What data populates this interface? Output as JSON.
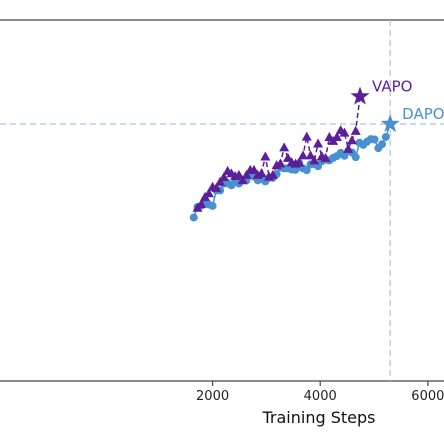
{
  "chart_data": {
    "type": "line",
    "title": "",
    "xlabel": "Training Steps",
    "ylabel": "",
    "xlim": [
      -1950,
      6300
    ],
    "ylim": [
      0,
      1
    ],
    "xticks": [
      2000,
      4000,
      6000
    ],
    "xtick_labels": [
      "2000",
      "4000",
      "6000"
    ],
    "grid": false,
    "reference_lines": {
      "x": 5300,
      "y": 0.712,
      "color": "#a9c4e8",
      "style": "dashed"
    },
    "series": [
      {
        "name": "VAPO",
        "color": "#5b1f99",
        "marker": "triangle",
        "line_style": "dashed",
        "label_position": "end",
        "end_marker": "star",
        "x": [
          1720,
          1790,
          1860,
          1930,
          2000,
          2070,
          2140,
          2210,
          2280,
          2350,
          2420,
          2490,
          2560,
          2630,
          2700,
          2770,
          2840,
          2910,
          2980,
          3050,
          3120,
          3190,
          3260,
          3330,
          3400,
          3470,
          3540,
          3610,
          3680,
          3750,
          3820,
          3890,
          3960,
          4030,
          4100,
          4170,
          4240,
          4310,
          4380,
          4450,
          4520,
          4590,
          4660,
          4740
        ],
        "values": [
          0.48,
          0.49,
          0.51,
          0.52,
          0.538,
          0.535,
          0.552,
          0.565,
          0.582,
          0.575,
          0.568,
          0.571,
          0.556,
          0.571,
          0.585,
          0.585,
          0.571,
          0.576,
          0.622,
          0.566,
          0.571,
          0.598,
          0.603,
          0.647,
          0.618,
          0.606,
          0.602,
          0.605,
          0.625,
          0.677,
          0.625,
          0.611,
          0.658,
          0.623,
          0.618,
          0.676,
          0.665,
          0.676,
          0.695,
          0.688,
          0.643,
          0.667,
          0.693,
          0.788
        ]
      },
      {
        "name": "DAPO",
        "color": "#4a8fd0",
        "marker": "circle",
        "line_style": "solid",
        "label_position": "end",
        "end_marker": "star",
        "x": [
          1650,
          1720,
          1790,
          1860,
          1930,
          2000,
          2070,
          2140,
          2210,
          2280,
          2350,
          2420,
          2490,
          2560,
          2630,
          2700,
          2770,
          2840,
          2910,
          2980,
          3050,
          3120,
          3190,
          3260,
          3330,
          3400,
          3470,
          3540,
          3610,
          3680,
          3750,
          3820,
          3890,
          3960,
          4030,
          4100,
          4170,
          4240,
          4310,
          4380,
          4450,
          4520,
          4590,
          4660,
          4730,
          4800,
          4870,
          4940,
          5010,
          5080,
          5150,
          5220,
          5300
        ],
        "values": [
          0.453,
          0.482,
          0.486,
          0.502,
          0.489,
          0.485,
          0.528,
          0.528,
          0.547,
          0.548,
          0.542,
          0.552,
          0.547,
          0.556,
          0.556,
          0.573,
          0.566,
          0.556,
          0.56,
          0.553,
          0.563,
          0.563,
          0.573,
          0.591,
          0.589,
          0.589,
          0.586,
          0.585,
          0.604,
          0.589,
          0.584,
          0.6,
          0.601,
          0.595,
          0.609,
          0.613,
          0.611,
          0.618,
          0.623,
          0.632,
          0.624,
          0.637,
          0.633,
          0.62,
          0.66,
          0.654,
          0.663,
          0.67,
          0.669,
          0.645,
          0.656,
          0.676,
          0.712
        ]
      }
    ]
  }
}
